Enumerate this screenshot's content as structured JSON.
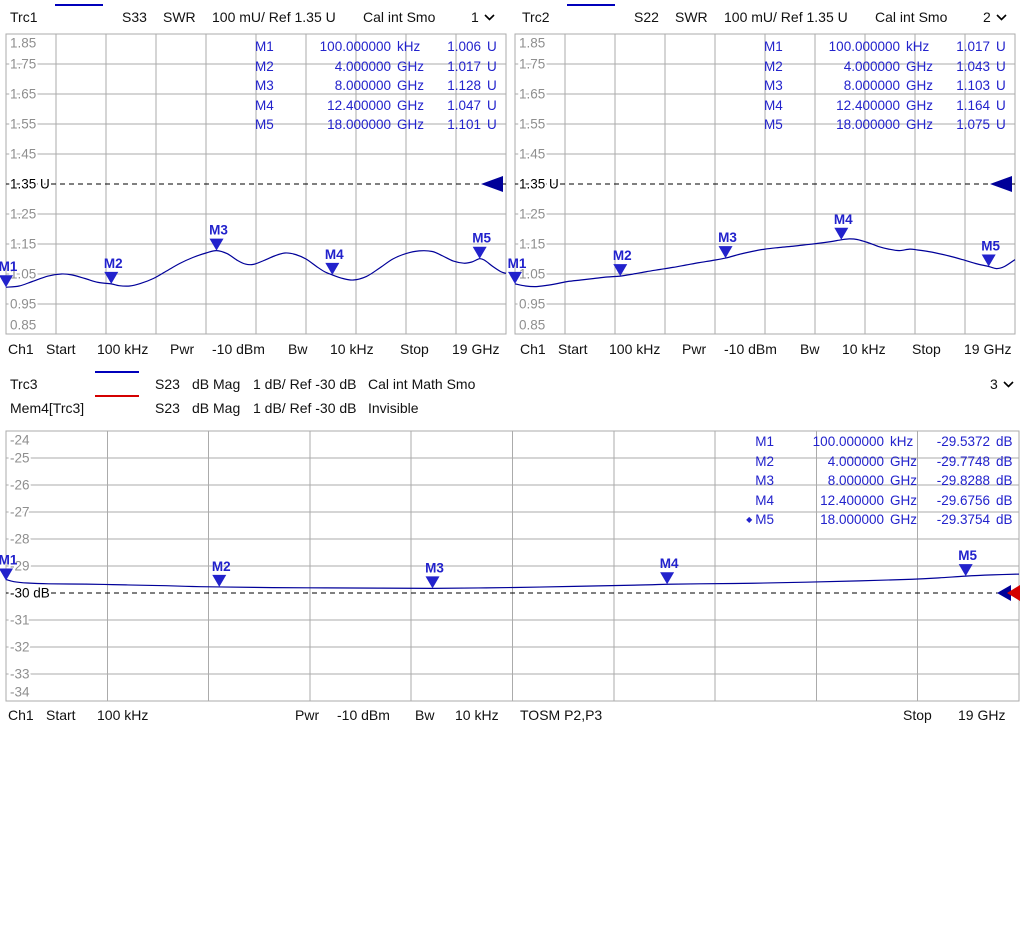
{
  "colors": {
    "trace_blue": "#000099",
    "marker_blue": "#2222cc",
    "mem_red": "#d40000",
    "grid_gray": "#ababab",
    "tick_gray": "#8f8f8f",
    "ref_black": "#000000"
  },
  "headers": {
    "trc1": {
      "name": "Trc1",
      "sparam": "S33",
      "format": "SWR",
      "scale": "100 mU/ Ref 1.35 U",
      "status": "Cal int Smo",
      "channel": "1"
    },
    "trc2": {
      "name": "Trc2",
      "sparam": "S22",
      "format": "SWR",
      "scale": "100 mU/ Ref 1.35 U",
      "status": "Cal int Smo",
      "channel": "2"
    },
    "trc3": {
      "name": "Trc3",
      "sparam": "S23",
      "format": "dB Mag",
      "scale": "1 dB/ Ref -30 dB",
      "status": "Cal int Math Smo",
      "channel": "3"
    },
    "mem4": {
      "name": "Mem4[Trc3]",
      "sparam": "S23",
      "format": "dB Mag",
      "scale": "1 dB/ Ref -30 dB",
      "status": "Invisible"
    }
  },
  "marker_tables": {
    "trc1": [
      {
        "id": "M1",
        "freq": "100.000000",
        "freq_unit": "kHz",
        "value": "1.006",
        "value_unit": "U",
        "active": false
      },
      {
        "id": "M2",
        "freq": "4.000000",
        "freq_unit": "GHz",
        "value": "1.017",
        "value_unit": "U",
        "active": false
      },
      {
        "id": "M3",
        "freq": "8.000000",
        "freq_unit": "GHz",
        "value": "1.128",
        "value_unit": "U",
        "active": false
      },
      {
        "id": "M4",
        "freq": "12.400000",
        "freq_unit": "GHz",
        "value": "1.047",
        "value_unit": "U",
        "active": false
      },
      {
        "id": "M5",
        "freq": "18.000000",
        "freq_unit": "GHz",
        "value": "1.101",
        "value_unit": "U",
        "active": false
      }
    ],
    "trc2": [
      {
        "id": "M1",
        "freq": "100.000000",
        "freq_unit": "kHz",
        "value": "1.017",
        "value_unit": "U",
        "active": false
      },
      {
        "id": "M2",
        "freq": "4.000000",
        "freq_unit": "GHz",
        "value": "1.043",
        "value_unit": "U",
        "active": false
      },
      {
        "id": "M3",
        "freq": "8.000000",
        "freq_unit": "GHz",
        "value": "1.103",
        "value_unit": "U",
        "active": false
      },
      {
        "id": "M4",
        "freq": "12.400000",
        "freq_unit": "GHz",
        "value": "1.164",
        "value_unit": "U",
        "active": false
      },
      {
        "id": "M5",
        "freq": "18.000000",
        "freq_unit": "GHz",
        "value": "1.075",
        "value_unit": "U",
        "active": false
      }
    ],
    "trc3": [
      {
        "id": "M1",
        "freq": "100.000000",
        "freq_unit": "kHz",
        "value": "-29.5372",
        "value_unit": "dB",
        "active": false
      },
      {
        "id": "M2",
        "freq": "4.000000",
        "freq_unit": "GHz",
        "value": "-29.7748",
        "value_unit": "dB",
        "active": false
      },
      {
        "id": "M3",
        "freq": "8.000000",
        "freq_unit": "GHz",
        "value": "-29.8288",
        "value_unit": "dB",
        "active": false
      },
      {
        "id": "M4",
        "freq": "12.400000",
        "freq_unit": "GHz",
        "value": "-29.6756",
        "value_unit": "dB",
        "active": false
      },
      {
        "id": "M5",
        "freq": "18.000000",
        "freq_unit": "GHz",
        "value": "-29.3754",
        "value_unit": "dB",
        "active": true
      }
    ]
  },
  "footers": {
    "top": {
      "ch": "Ch1",
      "start_label": "Start",
      "start_value": "100 kHz",
      "pwr_label": "Pwr",
      "pwr_value": "-10 dBm",
      "bw_label": "Bw",
      "bw_value": "10 kHz",
      "stop_label": "Stop",
      "stop_value": "19 GHz"
    },
    "bottom": {
      "ch": "Ch1",
      "start_label": "Start",
      "start_value": "100 kHz",
      "pwr_label": "Pwr",
      "pwr_value": "-10 dBm",
      "bw_label": "Bw",
      "bw_value": "10 kHz",
      "cal_status": "TOSM P2,P3",
      "stop_label": "Stop",
      "stop_value": "19 GHz"
    }
  },
  "chart_data": [
    {
      "id": "trc1",
      "type": "line",
      "trace": "Trc1",
      "sparam": "S33",
      "format": "SWR",
      "x_unit": "GHz",
      "x_min": 0.0001,
      "x_max": 19,
      "y_ticks": [
        "1.85",
        "1.75",
        "1.65",
        "1.55",
        "1.45",
        "1.35",
        "1.25",
        "1.15",
        "1.05",
        "0.95",
        "0.85"
      ],
      "y_top": 1.85,
      "y_div": 0.1,
      "grid_cols": 10,
      "grid_rows": 10,
      "ref": {
        "value": 1.35,
        "label": "1.35 U"
      },
      "mem_ref": false,
      "points": [
        [
          0.0001,
          1.006
        ],
        [
          0.5,
          1.01
        ],
        [
          1.0,
          1.025
        ],
        [
          1.6,
          1.043
        ],
        [
          2.1,
          1.05
        ],
        [
          2.5,
          1.047
        ],
        [
          3.0,
          1.035
        ],
        [
          3.5,
          1.022
        ],
        [
          4.0,
          1.017
        ],
        [
          4.3,
          1.011
        ],
        [
          4.7,
          1.01
        ],
        [
          5.1,
          1.018
        ],
        [
          5.6,
          1.035
        ],
        [
          6.1,
          1.06
        ],
        [
          6.6,
          1.085
        ],
        [
          7.1,
          1.105
        ],
        [
          7.6,
          1.12
        ],
        [
          8.0,
          1.128
        ],
        [
          8.4,
          1.118
        ],
        [
          8.8,
          1.095
        ],
        [
          9.1,
          1.083
        ],
        [
          9.4,
          1.082
        ],
        [
          9.8,
          1.095
        ],
        [
          10.2,
          1.11
        ],
        [
          10.6,
          1.12
        ],
        [
          11.0,
          1.115
        ],
        [
          11.4,
          1.1
        ],
        [
          11.8,
          1.075
        ],
        [
          12.1,
          1.058
        ],
        [
          12.4,
          1.047
        ],
        [
          12.8,
          1.035
        ],
        [
          13.2,
          1.03
        ],
        [
          13.7,
          1.042
        ],
        [
          14.2,
          1.07
        ],
        [
          14.7,
          1.1
        ],
        [
          15.2,
          1.118
        ],
        [
          15.7,
          1.127
        ],
        [
          16.2,
          1.125
        ],
        [
          16.6,
          1.11
        ],
        [
          17.0,
          1.093
        ],
        [
          17.4,
          1.086
        ],
        [
          17.7,
          1.09
        ],
        [
          18.0,
          1.101
        ],
        [
          18.2,
          1.095
        ],
        [
          18.5,
          1.075
        ],
        [
          18.8,
          1.058
        ],
        [
          19.0,
          1.052
        ]
      ],
      "markers": [
        {
          "id": "M1",
          "x": 0.0001,
          "y": 1.006
        },
        {
          "id": "M2",
          "x": 4,
          "y": 1.017
        },
        {
          "id": "M3",
          "x": 8,
          "y": 1.128
        },
        {
          "id": "M4",
          "x": 12.4,
          "y": 1.047
        },
        {
          "id": "M5",
          "x": 18,
          "y": 1.101
        }
      ]
    },
    {
      "id": "trc2",
      "type": "line",
      "trace": "Trc2",
      "sparam": "S22",
      "format": "SWR",
      "x_unit": "GHz",
      "x_min": 0.0001,
      "x_max": 19,
      "y_ticks": [
        "1.85",
        "1.75",
        "1.65",
        "1.55",
        "1.45",
        "1.35",
        "1.25",
        "1.15",
        "1.05",
        "0.95",
        "0.85"
      ],
      "y_top": 1.85,
      "y_div": 0.1,
      "grid_cols": 10,
      "grid_rows": 10,
      "ref": {
        "value": 1.35,
        "label": "1.35 U"
      },
      "mem_ref": false,
      "points": [
        [
          0.0001,
          1.017
        ],
        [
          0.4,
          1.01
        ],
        [
          0.8,
          1.008
        ],
        [
          1.2,
          1.012
        ],
        [
          1.6,
          1.018
        ],
        [
          2.0,
          1.025
        ],
        [
          2.5,
          1.03
        ],
        [
          3.0,
          1.035
        ],
        [
          3.5,
          1.04
        ],
        [
          4.0,
          1.043
        ],
        [
          4.5,
          1.05
        ],
        [
          5.0,
          1.058
        ],
        [
          5.5,
          1.065
        ],
        [
          6.0,
          1.072
        ],
        [
          6.5,
          1.08
        ],
        [
          7.0,
          1.088
        ],
        [
          7.5,
          1.095
        ],
        [
          8.0,
          1.103
        ],
        [
          8.5,
          1.115
        ],
        [
          9.0,
          1.125
        ],
        [
          9.5,
          1.133
        ],
        [
          10.0,
          1.138
        ],
        [
          10.5,
          1.142
        ],
        [
          11.0,
          1.147
        ],
        [
          11.5,
          1.152
        ],
        [
          12.0,
          1.158
        ],
        [
          12.4,
          1.164
        ],
        [
          12.7,
          1.167
        ],
        [
          13.0,
          1.165
        ],
        [
          13.4,
          1.155
        ],
        [
          13.8,
          1.142
        ],
        [
          14.2,
          1.133
        ],
        [
          14.6,
          1.128
        ],
        [
          15.0,
          1.133
        ],
        [
          15.3,
          1.13
        ],
        [
          15.7,
          1.125
        ],
        [
          16.0,
          1.12
        ],
        [
          16.5,
          1.11
        ],
        [
          17.0,
          1.098
        ],
        [
          17.5,
          1.085
        ],
        [
          18.0,
          1.075
        ],
        [
          18.3,
          1.068
        ],
        [
          18.6,
          1.075
        ],
        [
          19.0,
          1.098
        ]
      ],
      "markers": [
        {
          "id": "M1",
          "x": 0.0001,
          "y": 1.017
        },
        {
          "id": "M2",
          "x": 4,
          "y": 1.043
        },
        {
          "id": "M3",
          "x": 8,
          "y": 1.103
        },
        {
          "id": "M4",
          "x": 12.4,
          "y": 1.164
        },
        {
          "id": "M5",
          "x": 18,
          "y": 1.075
        }
      ]
    },
    {
      "id": "trc3",
      "type": "line",
      "trace": "Trc3",
      "sparam": "S23",
      "format": "dB Mag",
      "x_unit": "GHz",
      "x_min": 0.0001,
      "x_max": 19,
      "y_ticks": [
        "-24",
        "-25",
        "-26",
        "-27",
        "-28",
        "-29",
        "-30",
        "-31",
        "-32",
        "-33",
        "-34"
      ],
      "y_top": -24,
      "y_div": 1,
      "grid_cols": 10,
      "grid_rows": 10,
      "ref": {
        "value": -30,
        "label": "-30 dB"
      },
      "mem_ref": true,
      "points": [
        [
          0.0001,
          -29.5
        ],
        [
          0.15,
          -29.58
        ],
        [
          0.4,
          -29.63
        ],
        [
          0.8,
          -29.66
        ],
        [
          1.5,
          -29.67
        ],
        [
          2.0,
          -29.69
        ],
        [
          2.5,
          -29.71
        ],
        [
          3.0,
          -29.73
        ],
        [
          3.5,
          -29.76
        ],
        [
          4.0,
          -29.775
        ],
        [
          5.0,
          -29.8
        ],
        [
          6.0,
          -29.81
        ],
        [
          7.0,
          -29.82
        ],
        [
          8.0,
          -29.829
        ],
        [
          9.0,
          -29.81
        ],
        [
          10.0,
          -29.78
        ],
        [
          11.0,
          -29.74
        ],
        [
          12.0,
          -29.7
        ],
        [
          12.4,
          -29.676
        ],
        [
          13.0,
          -29.66
        ],
        [
          14.0,
          -29.64
        ],
        [
          15.0,
          -29.6
        ],
        [
          16.0,
          -29.55
        ],
        [
          17.0,
          -29.49
        ],
        [
          17.5,
          -29.44
        ],
        [
          18.0,
          -29.375
        ],
        [
          18.5,
          -29.33
        ],
        [
          19.0,
          -29.3
        ]
      ],
      "markers": [
        {
          "id": "M1",
          "x": 0.0001,
          "y": -29.5372
        },
        {
          "id": "M2",
          "x": 4,
          "y": -29.7748
        },
        {
          "id": "M3",
          "x": 8,
          "y": -29.8288
        },
        {
          "id": "M4",
          "x": 12.4,
          "y": -29.6756
        },
        {
          "id": "M5",
          "x": 18,
          "y": -29.3754
        }
      ]
    }
  ]
}
